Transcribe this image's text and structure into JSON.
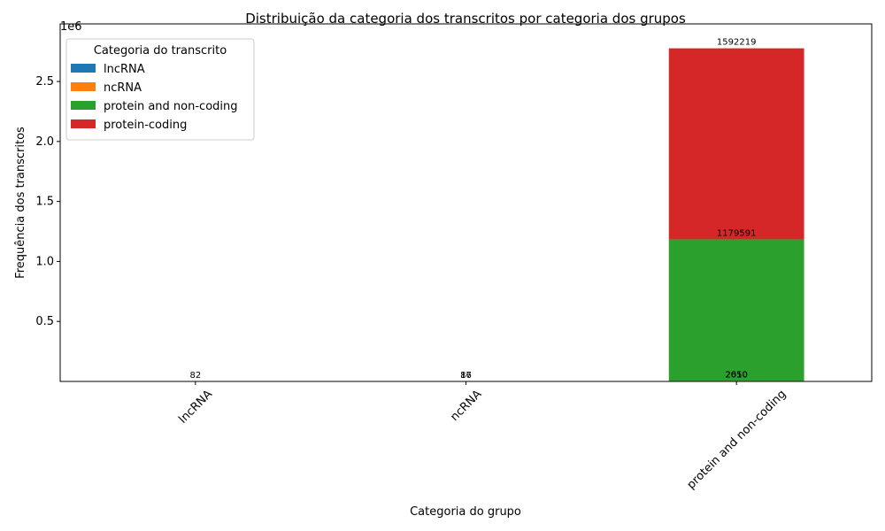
{
  "chart_data": {
    "type": "stacked_bar",
    "title": "Distribuição da categoria dos transcritos por categoria dos grupos",
    "x_label": "Categoria do grupo",
    "y_label": "Frequência dos transcritos",
    "y_offset_label": "1e6",
    "categories": [
      "lncRNA",
      "ncRNA",
      "protein and non-coding"
    ],
    "legend_title": "Categoria do transcrito",
    "legend_position": "upper-left",
    "series": [
      {
        "name": "lncRNA",
        "color": "#1f77b4",
        "values": [
          82,
          17,
          2010
        ]
      },
      {
        "name": "ncRNA",
        "color": "#ff7f0e",
        "values": [
          null,
          86,
          2650
        ]
      },
      {
        "name": "protein and non-coding",
        "color": "#2ca02c",
        "values": [
          null,
          null,
          1179591
        ]
      },
      {
        "name": "protein-coding",
        "color": "#d62728",
        "values": [
          null,
          null,
          1592219
        ]
      }
    ],
    "ylim": [
      0,
      2980000
    ],
    "yticks": [
      {
        "value": 500000,
        "label": "0.5"
      },
      {
        "value": 1000000,
        "label": "1.0"
      },
      {
        "value": 1500000,
        "label": "1.5"
      },
      {
        "value": 2000000,
        "label": "2.0"
      },
      {
        "value": 2500000,
        "label": "2.5"
      }
    ],
    "grid": false
  }
}
